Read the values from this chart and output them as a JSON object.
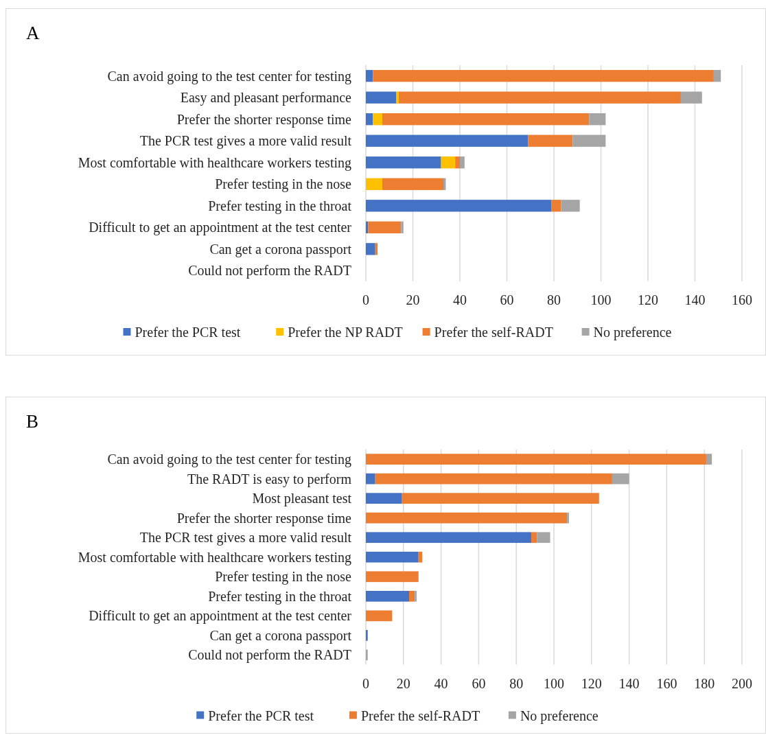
{
  "chart_data": [
    {
      "type": "bar",
      "orientation": "horizontal",
      "stacked": true,
      "title": "A",
      "categories": [
        "Can avoid going to the test center for testing",
        "Easy and pleasant performance",
        "Prefer the shorter response time",
        "The PCR test gives a more valid result",
        "Most comfortable with healthcare workers testing",
        "Prefer testing in the nose",
        "Prefer testing in the throat",
        "Difficult to get an appointment at the test center",
        "Can get a corona passport",
        "Could not perform the RADT"
      ],
      "series": [
        {
          "name": "Prefer the PCR test",
          "color": "#4472c4",
          "values": [
            3,
            13,
            3,
            69,
            32,
            0,
            79,
            1,
            4,
            0
          ]
        },
        {
          "name": "Prefer the NP RADT",
          "color": "#ffc000",
          "values": [
            0,
            1,
            4,
            0,
            6,
            7,
            0,
            0,
            0,
            0
          ]
        },
        {
          "name": "Prefer the self-RADT",
          "color": "#ed7d31",
          "values": [
            145,
            120,
            88,
            19,
            2,
            26,
            4,
            14,
            1,
            0
          ]
        },
        {
          "name": "No preference",
          "color": "#a5a5a5",
          "values": [
            3,
            9,
            7,
            14,
            2,
            1,
            8,
            1,
            0,
            0
          ]
        }
      ],
      "xlim": [
        0,
        160
      ],
      "xticks": [
        0,
        20,
        40,
        60,
        80,
        100,
        120,
        140,
        160
      ],
      "grid": "x",
      "legend": "bottom"
    },
    {
      "type": "bar",
      "orientation": "horizontal",
      "stacked": true,
      "title": "B",
      "categories": [
        "Can avoid going to the test center for testing",
        "The RADT is easy to perform",
        "Most pleasant test",
        "Prefer the shorter response time",
        "The PCR test gives a more valid result",
        "Most comfortable with healthcare workers testing",
        "Prefer testing in the nose",
        "Prefer testing in the throat",
        "Difficult to get an appointment at the test center",
        "Can get a corona passport",
        "Could not perform the RADT"
      ],
      "series": [
        {
          "name": "Prefer the PCR test",
          "color": "#4472c4",
          "values": [
            0,
            5,
            19,
            0,
            88,
            28,
            0,
            23,
            0,
            1,
            0
          ]
        },
        {
          "name": "Prefer the self-RADT",
          "color": "#ed7d31",
          "values": [
            181,
            126,
            105,
            107,
            3,
            2,
            28,
            3,
            14,
            0,
            0
          ]
        },
        {
          "name": "No preference",
          "color": "#a5a5a5",
          "values": [
            3,
            9,
            0,
            1,
            7,
            0,
            0,
            1,
            0,
            0,
            1
          ]
        }
      ],
      "xlim": [
        0,
        200
      ],
      "xticks": [
        0,
        20,
        40,
        60,
        80,
        100,
        120,
        140,
        160,
        180,
        200
      ],
      "grid": "x",
      "legend": "bottom"
    }
  ]
}
